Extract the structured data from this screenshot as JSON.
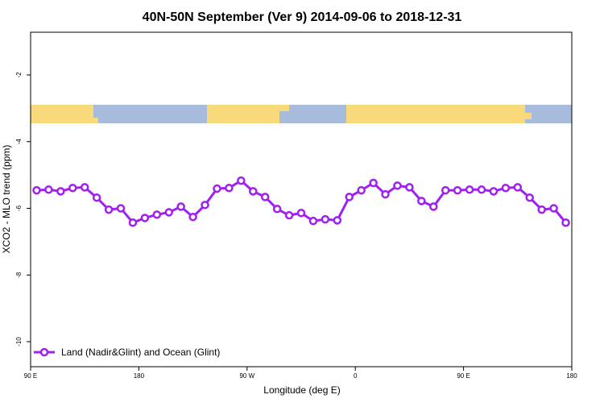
{
  "chart_data": {
    "type": "line",
    "title": "40N-50N September (Ver 9)   2014-09-06 to 2018-12-31",
    "x_label": "Longitude (deg E)",
    "y_label": "XCO2 - MLO trend (ppm)",
    "x": [
      95,
      105,
      115,
      125,
      135,
      145,
      155,
      165,
      175,
      185,
      195,
      205,
      215,
      225,
      235,
      245,
      255,
      265,
      275,
      285,
      295,
      305,
      315,
      325,
      335,
      345,
      355,
      365,
      375,
      385,
      395,
      405,
      415,
      425,
      435,
      445,
      455,
      465,
      475,
      485,
      495,
      505,
      515,
      525,
      535
    ],
    "series": [
      {
        "name": "Land (Nadir&Glint) and Ocean (Glint)",
        "color": "#a020f0",
        "values": [
          -5.46,
          -5.44,
          -5.49,
          -5.39,
          -5.37,
          -5.68,
          -6.04,
          -6.0,
          -6.43,
          -6.29,
          -6.19,
          -6.12,
          -5.95,
          -6.26,
          -5.9,
          -5.41,
          -5.39,
          -5.17,
          -5.49,
          -5.66,
          -6.02,
          -6.21,
          -6.14,
          -6.38,
          -6.33,
          -6.36,
          -5.66,
          -5.46,
          -5.24,
          -5.58,
          -5.32,
          -5.37,
          -5.78,
          -5.95,
          -5.46,
          -5.46,
          -5.44,
          -5.44,
          -5.49,
          -5.39,
          -5.37,
          -5.68,
          -6.04,
          -6.0,
          -6.43
        ]
      }
    ],
    "xlim": [
      90,
      540
    ],
    "xticks": [
      {
        "value": 90,
        "label": "90 E"
      },
      180,
      {
        "value": 270,
        "label": "90 W"
      },
      {
        "value": 360,
        "label": "0"
      },
      {
        "value": 450,
        "label": "90 E"
      },
      {
        "value": 540,
        "label": "180"
      }
    ],
    "ylim": [
      -10.75,
      -0.72
    ],
    "yticks": [
      -2,
      -4,
      -6,
      -8,
      -10
    ],
    "legend": "bottom-left"
  }
}
